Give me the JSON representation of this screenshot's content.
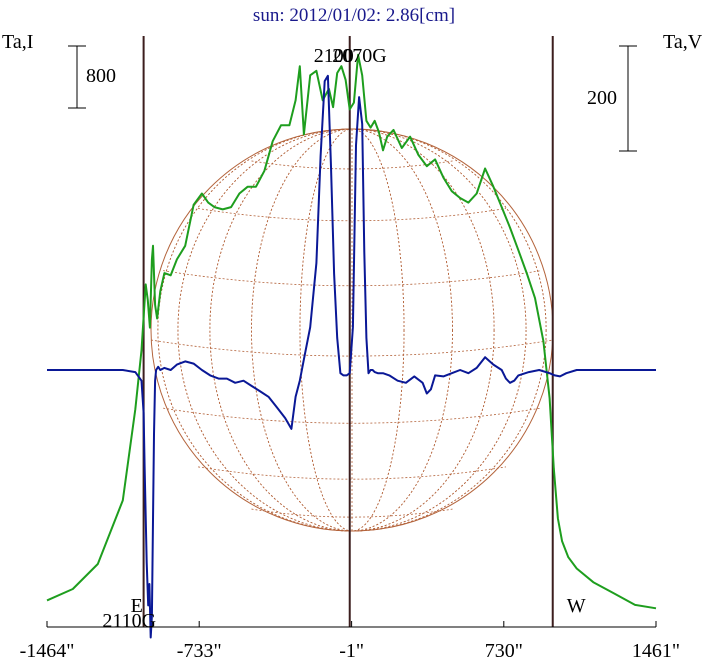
{
  "chart_data": {
    "type": "line",
    "title": "sun: 2012/01/02: 2.86[cm]",
    "left_axis_label": "Ta,I",
    "right_axis_label": "Ta,V",
    "left_scale_label": "800",
    "right_scale_label": "200",
    "xlim": [
      -1464,
      1461
    ],
    "x_ticks": [
      -1464,
      -733,
      -1,
      730,
      1461
    ],
    "x_tick_labels": [
      "-1464\"",
      "-733\"",
      "-1\"",
      "730\"",
      "1461\""
    ],
    "markers": [
      {
        "x": -1000,
        "label": "E"
      },
      {
        "x": -10,
        "label": "2100"
      },
      {
        "x": 60,
        "label": "2070G"
      },
      {
        "x": -972,
        "label": "2110G"
      },
      {
        "x": 965,
        "label": "W"
      }
    ],
    "colors": {
      "intensity": "#1e9e1e",
      "polarization": "#0a1896",
      "disk": "#b4643c",
      "markers": "#3c1e1e",
      "title": "#1a1a8c"
    },
    "series": [
      {
        "role": "intensity",
        "x": [
          -1464,
          -1340,
          -1220,
          -1100,
          -1040,
          -1010,
          -990,
          -980,
          -970,
          -960,
          -955,
          -945,
          -935,
          -920,
          -900,
          -870,
          -840,
          -800,
          -760,
          -720,
          -690,
          -660,
          -620,
          -580,
          -540,
          -500,
          -460,
          -420,
          -380,
          -340,
          -300,
          -270,
          -250,
          -230,
          -200,
          -170,
          -140,
          -110,
          -90,
          -70,
          -50,
          -30,
          -10,
          10,
          30,
          50,
          70,
          90,
          110,
          130,
          150,
          170,
          200,
          240,
          280,
          320,
          360,
          400,
          440,
          480,
          520,
          560,
          600,
          640,
          680,
          720,
          760,
          800,
          840,
          880,
          920,
          950,
          970,
          990,
          1010,
          1040,
          1080,
          1160,
          1260,
          1360,
          1461
        ],
        "y": [
          60,
          110,
          220,
          500,
          900,
          1160,
          1450,
          1380,
          1260,
          1560,
          1620,
          1360,
          1300,
          1420,
          1500,
          1490,
          1560,
          1620,
          1800,
          1850,
          1810,
          1790,
          1780,
          1790,
          1850,
          1880,
          1880,
          1950,
          2080,
          2150,
          2150,
          2260,
          2410,
          2110,
          2370,
          2390,
          2260,
          2310,
          2230,
          2380,
          2410,
          2350,
          2220,
          2250,
          2460,
          2370,
          2170,
          2140,
          2170,
          2120,
          2040,
          2100,
          2130,
          2050,
          2100,
          2020,
          1970,
          2000,
          1920,
          1860,
          1830,
          1810,
          1850,
          1960,
          1880,
          1790,
          1700,
          1600,
          1500,
          1390,
          1200,
          950,
          640,
          420,
          320,
          250,
          200,
          140,
          90,
          40,
          25
        ]
      },
      {
        "role": "polarization",
        "x": [
          -1464,
          -1300,
          -1100,
          -1040,
          -1010,
          -1000,
          -995,
          -985,
          -978,
          -972,
          -966,
          -960,
          -955,
          -950,
          -945,
          -940,
          -930,
          -920,
          -900,
          -870,
          -840,
          -800,
          -760,
          -720,
          -680,
          -640,
          -600,
          -560,
          -520,
          -480,
          -440,
          -400,
          -360,
          -320,
          -290,
          -270,
          -250,
          -230,
          -200,
          -170,
          -150,
          -130,
          -115,
          -100,
          -85,
          -70,
          -55,
          -40,
          -25,
          -10,
          5,
          20,
          35,
          50,
          60,
          70,
          80,
          90,
          100,
          110,
          125,
          150,
          180,
          220,
          260,
          300,
          340,
          360,
          380,
          400,
          440,
          480,
          520,
          560,
          600,
          640,
          680,
          720,
          740,
          760,
          780,
          800,
          850,
          900,
          950,
          975,
          1000,
          1030,
          1080,
          1200,
          1350,
          1461
        ],
        "y": [
          0,
          0,
          0,
          -2,
          -10,
          -40,
          -90,
          -180,
          -220,
          -200,
          -250,
          -230,
          -140,
          -60,
          -10,
          0,
          3,
          0,
          2,
          0,
          5,
          8,
          6,
          0,
          -5,
          -8,
          -8,
          -12,
          -10,
          -15,
          -20,
          -25,
          -35,
          -45,
          -55,
          -25,
          -10,
          10,
          40,
          100,
          200,
          270,
          275,
          190,
          90,
          30,
          -3,
          -5,
          -5,
          -3,
          40,
          210,
          255,
          230,
          110,
          30,
          -3,
          0,
          0,
          -2,
          -3,
          -3,
          -5,
          -10,
          -12,
          -6,
          -12,
          -22,
          -18,
          -5,
          -6,
          -3,
          0,
          -3,
          2,
          12,
          5,
          0,
          -8,
          -12,
          -10,
          -5,
          -2,
          0,
          -3,
          -5,
          -6,
          -3,
          0,
          0,
          0,
          0
        ]
      }
    ]
  }
}
